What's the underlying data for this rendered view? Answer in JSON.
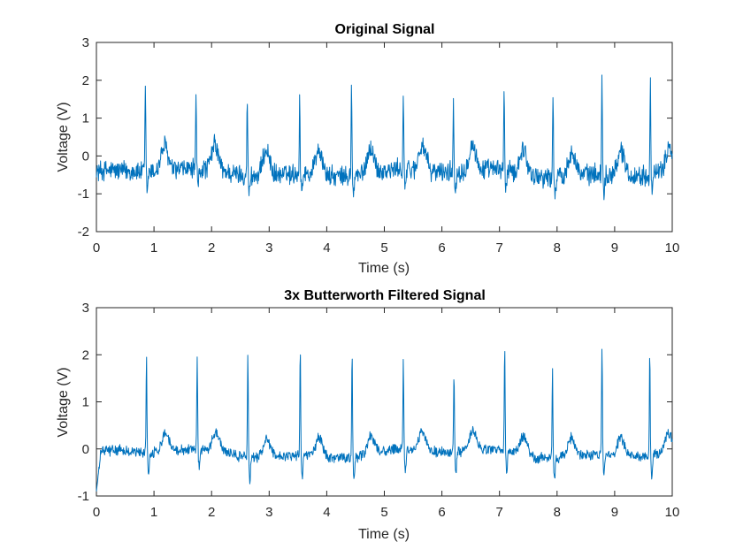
{
  "figure": {
    "background": "#ffffff",
    "line_color": "#0072bd"
  },
  "chart_data": [
    {
      "type": "line",
      "title": "Original Signal",
      "xlabel": "Time (s)",
      "ylabel": "Voltage (V)",
      "xlim": [
        0,
        10
      ],
      "ylim": [
        -2,
        3
      ],
      "xticks": [
        "0",
        "1",
        "2",
        "3",
        "4",
        "5",
        "6",
        "7",
        "8",
        "9",
        "10"
      ],
      "yticks": [
        "-2",
        "-1",
        "0",
        "1",
        "2",
        "3"
      ],
      "grid": false,
      "legend": "none",
      "series": [
        {
          "peaks": [
            {
              "t": 0.85,
              "v": 1.8
            },
            {
              "t": 1.73,
              "v": 1.4
            },
            {
              "t": 2.62,
              "v": 1.65
            },
            {
              "t": 3.53,
              "v": 1.6
            },
            {
              "t": 4.43,
              "v": 1.9
            },
            {
              "t": 5.33,
              "v": 1.6
            },
            {
              "t": 6.2,
              "v": 1.35
            },
            {
              "t": 7.08,
              "v": 1.8
            },
            {
              "t": 7.93,
              "v": 1.75
            },
            {
              "t": 8.78,
              "v": 2.05
            },
            {
              "t": 9.62,
              "v": 2.25
            }
          ],
          "baseline_v": -0.45,
          "t_wave_v": 0.3,
          "noise_amplitude_v": 0.32
        }
      ]
    },
    {
      "type": "line",
      "title": "3x Butterworth Filtered Signal",
      "xlabel": "Time (s)",
      "ylabel": "Voltage (V)",
      "xlim": [
        0,
        10
      ],
      "ylim": [
        -1,
        3
      ],
      "xticks": [
        "0",
        "1",
        "2",
        "3",
        "4",
        "5",
        "6",
        "7",
        "8",
        "9",
        "10"
      ],
      "yticks": [
        "-1",
        "0",
        "1",
        "2",
        "3"
      ],
      "grid": false,
      "legend": "none",
      "series": [
        {
          "peaks": [
            {
              "t": 0.87,
              "v": 1.9
            },
            {
              "t": 1.75,
              "v": 1.87
            },
            {
              "t": 2.63,
              "v": 2.05
            },
            {
              "t": 3.54,
              "v": 2.2
            },
            {
              "t": 4.44,
              "v": 2.2
            },
            {
              "t": 5.33,
              "v": 1.88
            },
            {
              "t": 6.21,
              "v": 1.7
            },
            {
              "t": 7.09,
              "v": 2.15
            },
            {
              "t": 7.92,
              "v": 1.85
            },
            {
              "t": 8.78,
              "v": 2.25
            },
            {
              "t": 9.61,
              "v": 2.15
            }
          ],
          "baseline_v": -0.1,
          "t_wave_v": 0.35,
          "noise_amplitude_v": 0.13
        }
      ]
    }
  ]
}
